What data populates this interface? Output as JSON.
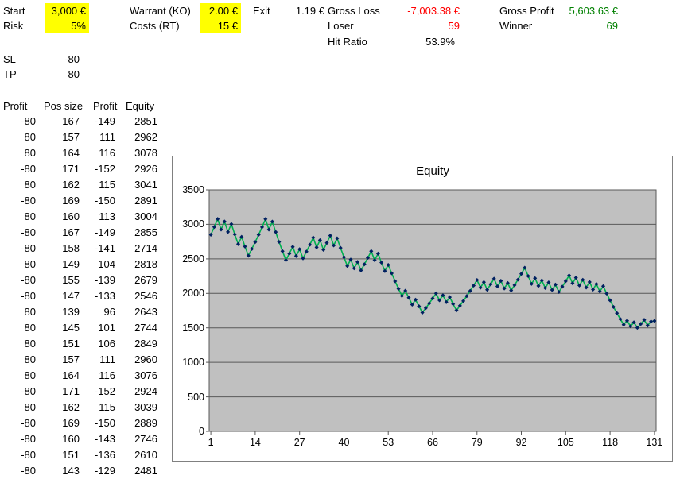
{
  "params": {
    "start_label": "Start",
    "start_value": "3,000 €",
    "risk_label": "Risk",
    "risk_value": "5%",
    "warrant_label": "Warrant (KO)",
    "warrant_value": "2.00 €",
    "costs_label": "Costs (RT)",
    "costs_value": "15 €",
    "exit_label": "Exit",
    "exit_value": "1.19 €",
    "sl_label": "SL",
    "sl_value": "-80",
    "tp_label": "TP",
    "tp_value": "80"
  },
  "stats": {
    "gross_loss_label": "Gross Loss",
    "gross_loss_value": "-7,003.38 €",
    "loser_label": "Loser",
    "loser_value": "59",
    "hit_ratio_label": "Hit Ratio",
    "hit_ratio_value": "53.9%",
    "gross_profit_label": "Gross Profit",
    "gross_profit_value": "5,603.63 €",
    "winner_label": "Winner",
    "winner_value": "69"
  },
  "table": {
    "headers": [
      "Profit",
      "Pos size",
      "Profit",
      "Equity"
    ],
    "rows": [
      [
        -80,
        167,
        -149,
        2851
      ],
      [
        80,
        157,
        111,
        2962
      ],
      [
        80,
        164,
        116,
        3078
      ],
      [
        -80,
        171,
        -152,
        2926
      ],
      [
        80,
        162,
        115,
        3041
      ],
      [
        -80,
        169,
        -150,
        2891
      ],
      [
        80,
        160,
        113,
        3004
      ],
      [
        -80,
        167,
        -149,
        2855
      ],
      [
        -80,
        158,
        -141,
        2714
      ],
      [
        80,
        149,
        104,
        2818
      ],
      [
        -80,
        155,
        -139,
        2679
      ],
      [
        -80,
        147,
        -133,
        2546
      ],
      [
        80,
        139,
        96,
        2643
      ],
      [
        80,
        145,
        101,
        2744
      ],
      [
        80,
        151,
        106,
        2849
      ],
      [
        80,
        157,
        111,
        2960
      ],
      [
        80,
        164,
        116,
        3076
      ],
      [
        -80,
        171,
        -152,
        2924
      ],
      [
        80,
        162,
        115,
        3039
      ],
      [
        -80,
        169,
        -150,
        2889
      ],
      [
        -80,
        160,
        -143,
        2746
      ],
      [
        -80,
        151,
        -136,
        2610
      ],
      [
        -80,
        143,
        -129,
        2481
      ]
    ]
  },
  "chart_data": {
    "type": "line",
    "title": "Equity",
    "ylabel": "",
    "xlabel": "",
    "ylim": [
      0,
      3500
    ],
    "ytick_step": 500,
    "xticks": [
      1,
      14,
      27,
      40,
      53,
      66,
      79,
      92,
      105,
      118,
      131
    ],
    "line_color": "#00B050",
    "marker_color": "#002060",
    "plot_bg": "#C0C0C0",
    "grid_color": "#595959",
    "values": [
      2851,
      2962,
      3078,
      2926,
      3041,
      2891,
      3004,
      2855,
      2714,
      2818,
      2679,
      2546,
      2643,
      2744,
      2849,
      2960,
      3076,
      2924,
      3039,
      2889,
      2746,
      2610,
      2481,
      2576,
      2675,
      2541,
      2639,
      2507,
      2604,
      2704,
      2808,
      2667,
      2770,
      2631,
      2732,
      2837,
      2694,
      2798,
      2658,
      2524,
      2397,
      2489,
      2364,
      2455,
      2332,
      2421,
      2514,
      2611,
      2480,
      2575,
      2446,
      2323,
      2412,
      2291,
      2176,
      2067,
      1963,
      2038,
      1936,
      1838,
      1908,
      1812,
      1721,
      1787,
      1855,
      1926,
      2000,
      1900,
      1972,
      1873,
      1944,
      1846,
      1753,
      1820,
      1889,
      1961,
      2036,
      2113,
      2193,
      2083,
      2162,
      2053,
      2131,
      2212,
      2101,
      2181,
      2071,
      2150,
      2042,
      2119,
      2199,
      2283,
      2370,
      2251,
      2138,
      2219,
      2108,
      2188,
      2078,
      2157,
      2049,
      2127,
      2020,
      2097,
      2177,
      2259,
      2146,
      2227,
      2115,
      2195,
      2085,
      2164,
      2056,
      2134,
      2027,
      2104,
      1998,
      1898,
      1803,
      1713,
      1627,
      1546,
      1603,
      1523,
      1580,
      1501,
      1557,
      1615,
      1534,
      1592,
      1600
    ]
  },
  "colors": {
    "highlight": "#FFFF00",
    "negative": "#FF0000",
    "positive": "#008000"
  }
}
